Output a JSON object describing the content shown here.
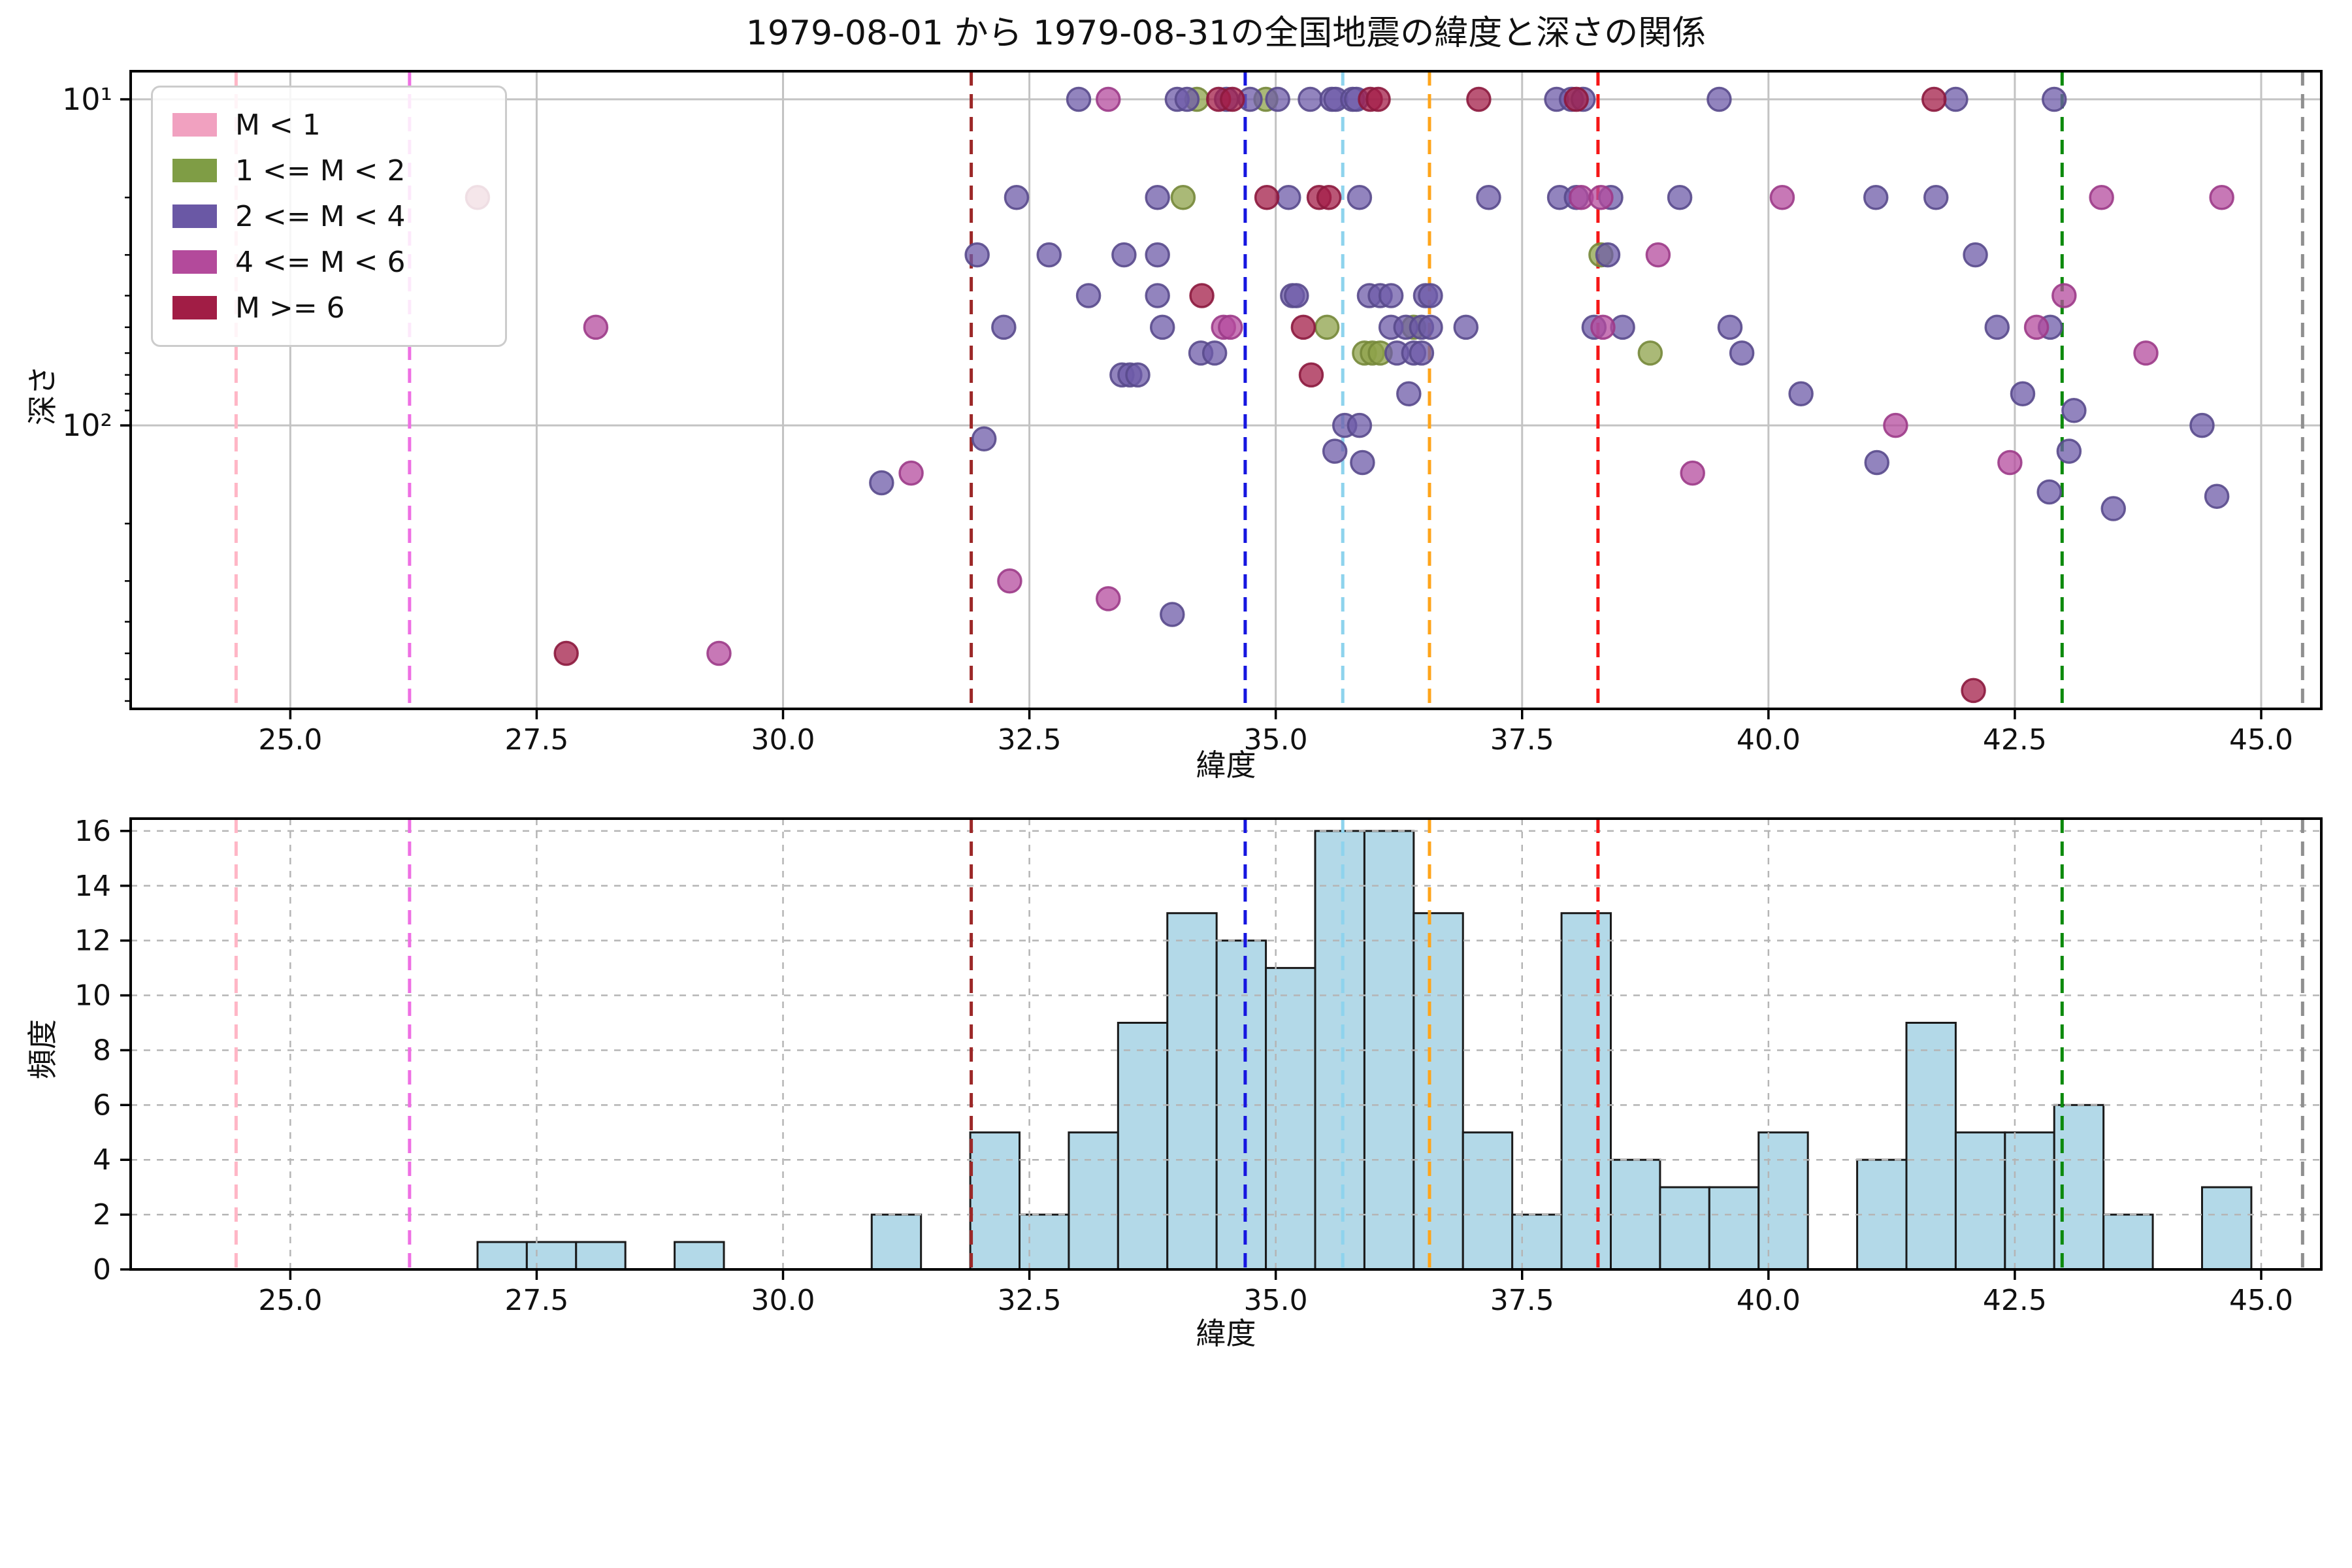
{
  "figure": {
    "title": "1979-08-01 から 1979-08-31の全国地震の緯度と深さの関係",
    "background": "#ffffff"
  },
  "legend": {
    "items": [
      {
        "label": "M < 1",
        "color": "#f1a1c0"
      },
      {
        "label": "1 <= M < 2",
        "color": "#7f9d45"
      },
      {
        "label": "2 <= M < 4",
        "color": "#6a58a5"
      },
      {
        "label": "4 <= M < 6",
        "color": "#b34a9b"
      },
      {
        "label": "M >= 6",
        "color": "#a11d45"
      }
    ]
  },
  "chart_data": [
    {
      "type": "scatter",
      "xlabel": "緯度",
      "ylabel": "深さ",
      "x_axis": {
        "min": 23.38,
        "max": 45.61,
        "ticks": [
          25.0,
          27.5,
          30.0,
          32.5,
          35.0,
          37.5,
          40.0,
          42.5,
          45.0
        ]
      },
      "y_axis": {
        "scale": "log",
        "inverted": true,
        "min": 8.2,
        "max": 740,
        "ticks": [
          {
            "value": 10,
            "label": "10¹"
          },
          {
            "value": 100,
            "label": "10²"
          }
        ],
        "minor_ticks": [
          20,
          30,
          40,
          50,
          60,
          70,
          80,
          90,
          200,
          300,
          400,
          500,
          600,
          700
        ]
      },
      "grid": {
        "style": "solid",
        "color": "#c3c3c3"
      },
      "marker": {
        "radius": 17.5,
        "opacity": 0.75,
        "edge_width": 3.5
      },
      "series": [
        {
          "name": "M < 1",
          "color": "#f1a1c0",
          "edge": "#d888a8",
          "points": []
        },
        {
          "name": "1 <= M < 2",
          "color": "#8ea149",
          "edge": "#75883a",
          "points": [
            [
              34.2,
              10
            ],
            [
              34.9,
              10
            ],
            [
              34.06,
              20
            ],
            [
              38.3,
              30
            ],
            [
              35.52,
              50
            ],
            [
              36.4,
              50
            ],
            [
              35.9,
              60
            ],
            [
              35.98,
              60
            ],
            [
              36.06,
              60
            ],
            [
              38.8,
              60
            ]
          ]
        },
        {
          "name": "2 <= M < 4",
          "color": "#6e5ba8",
          "edge": "#594a8c",
          "points": [
            [
              33.0,
              10
            ],
            [
              34.0,
              10
            ],
            [
              34.1,
              10
            ],
            [
              34.5,
              10
            ],
            [
              34.74,
              10
            ],
            [
              35.02,
              10
            ],
            [
              35.35,
              10
            ],
            [
              35.57,
              10
            ],
            [
              35.61,
              10
            ],
            [
              35.78,
              10
            ],
            [
              35.82,
              10
            ],
            [
              37.85,
              10
            ],
            [
              38.0,
              10
            ],
            [
              38.12,
              10
            ],
            [
              39.5,
              10
            ],
            [
              41.9,
              10
            ],
            [
              42.9,
              10
            ],
            [
              32.37,
              20
            ],
            [
              33.8,
              20
            ],
            [
              35.13,
              20
            ],
            [
              35.85,
              20
            ],
            [
              37.16,
              20
            ],
            [
              37.88,
              20
            ],
            [
              38.05,
              20
            ],
            [
              38.4,
              20
            ],
            [
              39.1,
              20
            ],
            [
              41.09,
              20
            ],
            [
              41.7,
              20
            ],
            [
              31.97,
              30
            ],
            [
              32.7,
              30
            ],
            [
              33.46,
              30
            ],
            [
              33.8,
              30
            ],
            [
              38.37,
              30
            ],
            [
              42.1,
              30
            ],
            [
              33.1,
              40
            ],
            [
              33.8,
              40
            ],
            [
              35.17,
              40
            ],
            [
              35.21,
              40
            ],
            [
              35.95,
              40
            ],
            [
              36.06,
              40
            ],
            [
              36.17,
              40
            ],
            [
              36.52,
              40
            ],
            [
              36.57,
              40
            ],
            [
              32.24,
              50
            ],
            [
              33.85,
              50
            ],
            [
              36.17,
              50
            ],
            [
              36.32,
              50
            ],
            [
              36.48,
              50
            ],
            [
              36.57,
              50
            ],
            [
              36.93,
              50
            ],
            [
              38.23,
              50
            ],
            [
              38.52,
              50
            ],
            [
              39.61,
              50
            ],
            [
              42.32,
              50
            ],
            [
              42.86,
              50
            ],
            [
              34.24,
              60
            ],
            [
              34.38,
              60
            ],
            [
              36.23,
              60
            ],
            [
              36.4,
              60
            ],
            [
              36.48,
              60
            ],
            [
              39.73,
              60
            ],
            [
              33.44,
              70
            ],
            [
              33.52,
              70
            ],
            [
              33.6,
              70
            ],
            [
              36.35,
              80
            ],
            [
              40.33,
              80
            ],
            [
              42.58,
              80
            ],
            [
              43.1,
              90
            ],
            [
              35.7,
              100
            ],
            [
              35.85,
              100
            ],
            [
              44.4,
              100
            ],
            [
              32.04,
              110
            ],
            [
              35.6,
              120
            ],
            [
              43.05,
              120
            ],
            [
              35.88,
              130
            ],
            [
              41.1,
              130
            ],
            [
              31.0,
              150
            ],
            [
              42.85,
              160
            ],
            [
              44.55,
              165
            ],
            [
              43.5,
              180
            ],
            [
              33.95,
              380
            ]
          ]
        },
        {
          "name": "4 <= M < 6",
          "color": "#b44b9d",
          "edge": "#9c3b88",
          "points": [
            [
              33.3,
              10
            ],
            [
              38.1,
              20
            ],
            [
              38.3,
              20
            ],
            [
              40.14,
              20
            ],
            [
              43.38,
              20
            ],
            [
              44.6,
              20
            ],
            [
              38.88,
              30
            ],
            [
              43.0,
              40
            ],
            [
              28.1,
              50
            ],
            [
              34.47,
              50
            ],
            [
              34.54,
              50
            ],
            [
              38.32,
              50
            ],
            [
              42.72,
              50
            ],
            [
              43.83,
              60
            ],
            [
              41.29,
              100
            ],
            [
              42.45,
              130
            ],
            [
              31.3,
              140
            ],
            [
              39.23,
              140
            ],
            [
              32.3,
              300
            ],
            [
              33.3,
              340
            ],
            [
              29.35,
              500
            ]
          ]
        },
        {
          "name": "M >= 6",
          "color": "#a31d48",
          "edge": "#8c1a3e",
          "points": [
            [
              34.42,
              10
            ],
            [
              34.56,
              10
            ],
            [
              35.96,
              10
            ],
            [
              36.04,
              10
            ],
            [
              37.06,
              10
            ],
            [
              38.05,
              10
            ],
            [
              41.68,
              10
            ],
            [
              26.9,
              20
            ],
            [
              34.91,
              20
            ],
            [
              35.44,
              20
            ],
            [
              35.54,
              20
            ],
            [
              34.25,
              40
            ],
            [
              35.28,
              50
            ],
            [
              35.36,
              70
            ],
            [
              27.8,
              500
            ],
            [
              42.08,
              650
            ]
          ]
        }
      ],
      "vlines": [
        {
          "x": 24.45,
          "color": "#ffb6c6"
        },
        {
          "x": 26.21,
          "color": "#ee6fe3"
        },
        {
          "x": 31.91,
          "color": "#9c2828"
        },
        {
          "x": 34.69,
          "color": "#1616e0"
        },
        {
          "x": 35.68,
          "color": "#8ed3ed"
        },
        {
          "x": 36.56,
          "color": "#ffa51b"
        },
        {
          "x": 38.27,
          "color": "#f51616"
        },
        {
          "x": 42.98,
          "color": "#0c8a0c"
        },
        {
          "x": 45.42,
          "color": "#8f8f8f"
        }
      ]
    },
    {
      "type": "bar",
      "xlabel": "緯度",
      "ylabel": "頻度",
      "x_axis": {
        "min": 23.38,
        "max": 45.61,
        "ticks": [
          25.0,
          27.5,
          30.0,
          32.5,
          35.0,
          37.5,
          40.0,
          42.5,
          45.0
        ]
      },
      "y_axis": {
        "min": 0,
        "max": 16.45,
        "ticks": [
          0,
          2,
          4,
          6,
          8,
          10,
          12,
          14,
          16
        ]
      },
      "grid": {
        "style": "dashed",
        "color": "#b5b5b5"
      },
      "bar_color": "#b3d9e8",
      "bar_edge": "#1a1a1a",
      "bin_start": 26.9,
      "bin_width": 0.5,
      "categories_bin_edges": [
        26.9,
        27.4,
        27.9,
        28.4,
        28.9,
        29.4,
        29.9,
        30.4,
        30.9,
        31.4,
        31.9,
        32.4,
        32.9,
        33.4,
        33.9,
        34.4,
        34.9,
        35.4,
        35.9,
        36.4,
        36.9,
        37.4,
        37.9,
        38.4,
        38.9,
        39.4,
        39.9,
        40.4,
        40.9,
        41.4,
        41.9,
        42.4,
        42.9,
        43.4,
        43.9,
        44.4,
        44.9
      ],
      "values": [
        1,
        1,
        1,
        0,
        1,
        0,
        0,
        0,
        2,
        0,
        5,
        2,
        5,
        9,
        13,
        12,
        11,
        16,
        16,
        13,
        5,
        2,
        13,
        4,
        3,
        3,
        5,
        0,
        4,
        9,
        5,
        5,
        6,
        2,
        0,
        3
      ],
      "vlines": [
        {
          "x": 24.45,
          "color": "#ffb6c6"
        },
        {
          "x": 26.21,
          "color": "#ee6fe3"
        },
        {
          "x": 31.91,
          "color": "#9c2828"
        },
        {
          "x": 34.69,
          "color": "#1616e0"
        },
        {
          "x": 35.68,
          "color": "#8ed3ed"
        },
        {
          "x": 36.56,
          "color": "#ffa51b"
        },
        {
          "x": 38.27,
          "color": "#f51616"
        },
        {
          "x": 42.98,
          "color": "#0c8a0c"
        },
        {
          "x": 45.42,
          "color": "#8f8f8f"
        }
      ]
    }
  ]
}
